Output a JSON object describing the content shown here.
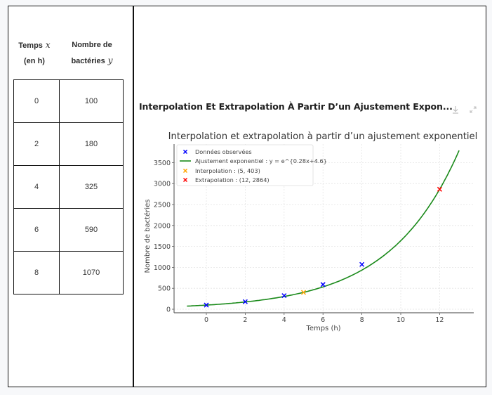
{
  "table": {
    "headers": {
      "x_label": "Temps",
      "x_var": "x",
      "x_unit": "(en h)",
      "y_label_line1": "Nombre de",
      "y_label_line2": "bactéries",
      "y_var": "y"
    },
    "rows": [
      {
        "x": "0",
        "y": "100"
      },
      {
        "x": "2",
        "y": "180"
      },
      {
        "x": "4",
        "y": "325"
      },
      {
        "x": "6",
        "y": "590"
      },
      {
        "x": "8",
        "y": "1070"
      }
    ]
  },
  "card": {
    "title": "Interpolation Et Extrapolation À Partir D’un Ajustement Expon...",
    "download_icon": "download-icon",
    "expand_icon": "expand-icon"
  },
  "chart_data": {
    "type": "scatter",
    "title": "Interpolation et extrapolation à partir d’un ajustement exponentiel",
    "xlabel": "Temps (h)",
    "ylabel": "Nombre de bactéries",
    "xlim": [
      -1.66,
      13.75
    ],
    "ylim": [
      -80,
      3800
    ],
    "xticks": [
      0,
      2,
      4,
      6,
      8,
      10,
      12
    ],
    "yticks": [
      0,
      500,
      1000,
      1500,
      2000,
      2500,
      3000,
      3500
    ],
    "grid": true,
    "legend_position": "upper left",
    "series": [
      {
        "name": "Données observées",
        "kind": "scatter",
        "marker": "x",
        "color": "#0000ff",
        "x": [
          0,
          2,
          4,
          6,
          8
        ],
        "y": [
          100,
          180,
          325,
          590,
          1070
        ]
      },
      {
        "name": "Ajustement exponentiel : y = e^{0.28x+4.6}",
        "kind": "line",
        "color": "#1a8a1a",
        "formula": "exp(0.28*x+4.6)",
        "x_range": [
          -1,
          13
        ]
      },
      {
        "name": "Interpolation : (5, 403)",
        "kind": "scatter",
        "marker": "x",
        "color": "#ffa500",
        "x": [
          5
        ],
        "y": [
          403
        ]
      },
      {
        "name": "Extrapolation : (12, 2864)",
        "kind": "scatter",
        "marker": "x",
        "color": "#ff0000",
        "x": [
          12
        ],
        "y": [
          2864
        ]
      }
    ],
    "legend": [
      "Données observées",
      "Ajustement exponentiel : y = e^{0.28x+4.6}",
      "Interpolation : (5, 403)",
      "Extrapolation : (12, 2864)"
    ]
  }
}
